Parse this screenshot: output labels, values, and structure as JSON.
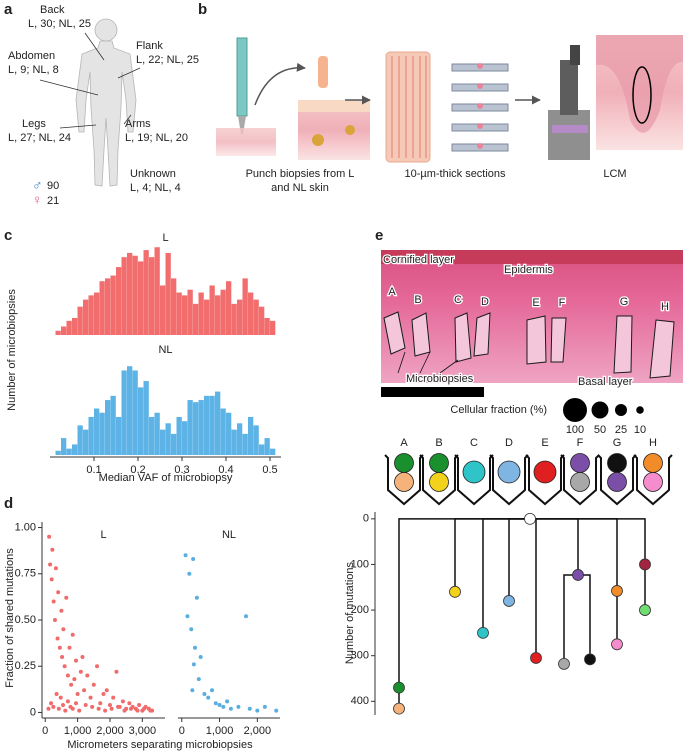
{
  "panels": [
    "a",
    "b",
    "c",
    "d",
    "e"
  ],
  "body_map": {
    "sites": [
      {
        "name": "Back",
        "counts": "L, 30; NL, 25"
      },
      {
        "name": "Abdomen",
        "counts": "L, 9; NL, 8"
      },
      {
        "name": "Flank",
        "counts": "L, 22; NL, 25"
      },
      {
        "name": "Legs",
        "counts": "L, 27; NL, 24"
      },
      {
        "name": "Arms",
        "counts": "L, 19; NL, 20"
      },
      {
        "name": "Unknown",
        "counts": "L, 4; NL, 4"
      }
    ],
    "sex": [
      {
        "symbol": "♂",
        "count": 90,
        "color": "#3b7dc4"
      },
      {
        "symbol": "♀",
        "count": 21,
        "color": "#e0607a"
      }
    ]
  },
  "workflow": {
    "steps": [
      "Punch biopsies from L",
      "and NL skin",
      "10-µm-thick sections",
      "LCM"
    ]
  },
  "histology": {
    "labels": [
      "Cornified layer",
      "Epidermis",
      "Microbiopsies",
      "Basal layer"
    ],
    "regions": [
      "A",
      "B",
      "C",
      "D",
      "E",
      "F",
      "G",
      "H"
    ]
  },
  "cellular_fraction": {
    "title": "Cellular fraction (%)",
    "sizes": [
      100,
      50,
      25,
      10
    ]
  },
  "clones": {
    "labels": [
      "A",
      "B",
      "C",
      "D",
      "E",
      "F",
      "G",
      "H"
    ],
    "colors": [
      [
        "#1a8f2e",
        "#f5b27a"
      ],
      [
        "#1a8f2e",
        "#f2d21b"
      ],
      [
        "#2ec4c8"
      ],
      [
        "#7fb5e3"
      ],
      [
        "#e02020"
      ],
      [
        "#7b4fa8",
        "#a8a8a8"
      ],
      [
        "#111111",
        "#7b4fa8"
      ],
      [
        "#f28c28",
        "#f58ccd"
      ]
    ]
  },
  "chart_data": [
    {
      "type": "histogram",
      "title": "L",
      "ylabel": "Number of microbiopsies",
      "color": "#f26d6d",
      "bins": [
        0.0125,
        0.025,
        0.0375,
        0.05,
        0.0625,
        0.075,
        0.0875,
        0.1,
        0.1125,
        0.125,
        0.1375,
        0.15,
        0.1625,
        0.175,
        0.1875,
        0.2,
        0.2125,
        0.225,
        0.2375,
        0.25,
        0.2625,
        0.275,
        0.2875,
        0.3,
        0.3125,
        0.325,
        0.3375,
        0.35,
        0.3625,
        0.375,
        0.3875,
        0.4,
        0.4125,
        0.425,
        0.4375,
        0.45,
        0.4625,
        0.475,
        0.4875,
        0.5,
        0.5125
      ],
      "values": [
        3,
        6,
        10,
        12,
        20,
        25,
        28,
        30,
        38,
        40,
        42,
        48,
        55,
        58,
        56,
        52,
        60,
        55,
        62,
        35,
        58,
        40,
        30,
        28,
        32,
        22,
        30,
        25,
        35,
        28,
        32,
        38,
        22,
        25,
        40,
        30,
        25,
        20,
        12,
        10
      ],
      "xlim": [
        0,
        0.525
      ],
      "ylim": [
        0,
        65
      ]
    },
    {
      "type": "histogram",
      "title": "NL",
      "xlabel": "Median VAF of microbiopsy",
      "color": "#5db3e6",
      "bins": [
        0.0125,
        0.025,
        0.0375,
        0.05,
        0.0625,
        0.075,
        0.0875,
        0.1,
        0.1125,
        0.125,
        0.1375,
        0.15,
        0.1625,
        0.175,
        0.1875,
        0.2,
        0.2125,
        0.225,
        0.2375,
        0.25,
        0.2625,
        0.275,
        0.2875,
        0.3,
        0.3125,
        0.325,
        0.3375,
        0.35,
        0.3625,
        0.375,
        0.3875,
        0.4,
        0.4125,
        0.425,
        0.4375,
        0.45,
        0.4625,
        0.475,
        0.4875,
        0.5,
        0.5125
      ],
      "values": [
        2,
        8,
        3,
        5,
        14,
        12,
        18,
        22,
        20,
        26,
        28,
        18,
        40,
        42,
        40,
        32,
        35,
        18,
        20,
        12,
        15,
        10,
        18,
        16,
        26,
        25,
        26,
        28,
        28,
        30,
        22,
        20,
        12,
        15,
        10,
        18,
        14,
        5,
        8,
        3
      ],
      "xlim": [
        0,
        0.525
      ],
      "ylim": [
        0,
        44
      ],
      "xticks": [
        0.1,
        0.2,
        0.3,
        0.4,
        0.5
      ]
    },
    {
      "type": "scatter",
      "title": "L",
      "ylabel": "Fraction of shared mutations",
      "xlabel": "Micrometers separating microbiopsies",
      "color": "#f06b6b",
      "x": [
        120,
        150,
        200,
        220,
        260,
        300,
        330,
        380,
        400,
        450,
        500,
        520,
        560,
        600,
        650,
        700,
        750,
        800,
        850,
        900,
        950,
        1000,
        1100,
        1150,
        1200,
        1300,
        1400,
        1500,
        1600,
        1700,
        1800,
        1900,
        2000,
        2100,
        2200,
        2300,
        2400,
        2500,
        2600,
        2700,
        2800,
        2900,
        3000,
        3100,
        3200,
        3300,
        100,
        180,
        250,
        350,
        420,
        480,
        550,
        620,
        700,
        780,
        850,
        950,
        1050,
        1250,
        1450,
        1650,
        1850,
        2050,
        2250,
        2450,
        2650,
        2850,
        3050,
        3250
      ],
      "y": [
        0.95,
        0.8,
        0.72,
        0.88,
        0.6,
        0.5,
        0.78,
        0.4,
        0.65,
        0.35,
        0.55,
        0.3,
        0.45,
        0.25,
        0.62,
        0.2,
        0.35,
        0.15,
        0.42,
        0.18,
        0.28,
        0.1,
        0.22,
        0.3,
        0.12,
        0.2,
        0.08,
        0.15,
        0.25,
        0.05,
        0.1,
        0.12,
        0.04,
        0.08,
        0.22,
        0.03,
        0.06,
        0.02,
        0.05,
        0.03,
        0.02,
        0.04,
        0.01,
        0.03,
        0.02,
        0.01,
        0.02,
        0.05,
        0.03,
        0.1,
        0.02,
        0.08,
        0.04,
        0.01,
        0.06,
        0.03,
        0.02,
        0.05,
        0.01,
        0.04,
        0.03,
        0.02,
        0.01,
        0.02,
        0.03,
        0.01,
        0.02,
        0.01,
        0.02,
        0.01
      ],
      "xlim": [
        -100,
        3700
      ],
      "ylim": [
        -0.03,
        1.03
      ],
      "xticks": [
        0,
        {
          "value": 1000,
          "label": "1,000"
        },
        {
          "value": 2000,
          "label": "2,000"
        },
        {
          "value": 3000,
          "label": "3,000"
        }
      ],
      "yticks": [
        0,
        0.25,
        {
          "value": 0.5,
          "label": "0.50"
        },
        0.75,
        {
          "value": 1,
          "label": "1.00"
        }
      ]
    },
    {
      "type": "scatter",
      "title": "NL",
      "color": "#5aaee0",
      "x": [
        100,
        150,
        200,
        250,
        300,
        350,
        400,
        450,
        500,
        600,
        700,
        800,
        900,
        1000,
        1100,
        1200,
        1300,
        1500,
        1700,
        1800,
        2000,
        2200,
        2500,
        320,
        280
      ],
      "y": [
        0.85,
        0.52,
        0.75,
        0.45,
        0.83,
        0.35,
        0.62,
        0.18,
        0.3,
        0.1,
        0.08,
        0.12,
        0.05,
        0.04,
        0.03,
        0.06,
        0.02,
        0.03,
        0.52,
        0.02,
        0.01,
        0.03,
        0.01,
        0.26,
        0.12
      ],
      "xlim": [
        -100,
        2600
      ],
      "ylim": [
        -0.03,
        1.03
      ],
      "xticks": [
        0,
        {
          "value": 1000,
          "label": "1,000"
        },
        {
          "value": 2000,
          "label": "2,000"
        }
      ]
    },
    {
      "type": "tree",
      "ylabel": "Number of mutations",
      "ylim": [
        -15,
        430
      ],
      "yticks": [
        0,
        100,
        200,
        300,
        400
      ],
      "nodes": [
        {
          "value": 0,
          "color": "#ffffff"
        },
        {
          "value": 370,
          "color": "#1a8f2e"
        },
        {
          "value": 416,
          "color": "#f5b27a"
        },
        {
          "value": 160,
          "color": "#f2d21b"
        },
        {
          "value": 250,
          "color": "#2ec4c8"
        },
        {
          "value": 180,
          "color": "#7fb5e3"
        },
        {
          "value": 305,
          "color": "#e02020"
        },
        {
          "value": 123,
          "color": "#7b4fa8"
        },
        {
          "value": 318,
          "color": "#a8a8a8"
        },
        {
          "value": 308,
          "color": "#111111"
        },
        {
          "value": 158,
          "color": "#f28c28"
        },
        {
          "value": 275,
          "color": "#f58ccd"
        },
        {
          "value": 100,
          "color": "#a3243f"
        },
        {
          "value": 200,
          "color": "#6fdd72"
        }
      ]
    }
  ]
}
